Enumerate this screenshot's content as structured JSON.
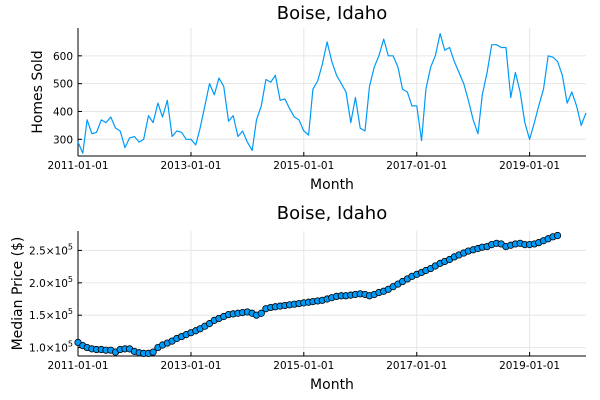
{
  "chart_data": [
    {
      "type": "line",
      "title": "Boise, Idaho",
      "xlabel": "Month",
      "ylabel": "Homes Sold",
      "xlim": [
        "2011-01-01",
        "2020-01-01"
      ],
      "ylim": [
        240,
        700
      ],
      "xticks": [
        "2011-01-01",
        "2013-01-01",
        "2015-01-01",
        "2017-01-01",
        "2019-01-01"
      ],
      "yticks": [
        300,
        400,
        500,
        600
      ],
      "color": "#009af9",
      "grid": true,
      "legend": "none",
      "series": [
        {
          "start": "2011-01",
          "values": [
            290,
            250,
            370,
            320,
            325,
            370,
            360,
            380,
            340,
            330,
            270,
            305,
            310,
            290,
            300,
            385,
            360,
            430,
            380,
            440,
            310,
            330,
            325,
            300,
            300,
            280,
            340,
            420,
            500,
            460,
            520,
            490,
            365,
            385,
            310,
            330,
            290,
            260,
            370,
            420,
            515,
            505,
            530,
            440,
            445,
            410,
            380,
            370,
            330,
            315,
            480,
            510,
            570,
            650,
            580,
            530,
            500,
            470,
            360,
            450,
            340,
            330,
            490,
            560,
            600,
            660,
            600,
            600,
            560,
            480,
            470,
            420,
            420,
            295,
            480,
            560,
            600,
            680,
            620,
            630,
            580,
            540,
            500,
            440,
            370,
            320,
            460,
            540,
            640,
            640,
            630,
            630,
            450,
            540,
            470,
            360,
            300,
            360,
            420,
            480,
            600,
            595,
            580,
            530,
            430,
            470,
            420,
            350,
            395
          ]
        }
      ]
    },
    {
      "type": "scatter",
      "title": "Boise, Idaho",
      "xlabel": "Month",
      "ylabel": "Median Price ($)",
      "xlim": [
        "2011-01-01",
        "2020-01-01"
      ],
      "ylim": [
        87000,
        280000
      ],
      "xticks": [
        "2011-01-01",
        "2013-01-01",
        "2015-01-01",
        "2017-01-01",
        "2019-01-01"
      ],
      "yticks": [
        {
          "value": 100000,
          "mantissa": "1.0",
          "exponent": "5"
        },
        {
          "value": 150000,
          "mantissa": "1.5",
          "exponent": "5"
        },
        {
          "value": 200000,
          "mantissa": "2.0",
          "exponent": "5"
        },
        {
          "value": 250000,
          "mantissa": "2.5",
          "exponent": "5"
        }
      ],
      "tick_prefix": "×10",
      "color": "#009af9",
      "grid": true,
      "legend": "none",
      "series": [
        {
          "start": "2011-01",
          "values": [
            108000,
            103000,
            100000,
            98000,
            97000,
            97000,
            96000,
            96000,
            93000,
            97000,
            98000,
            98000,
            94000,
            92000,
            91000,
            91000,
            93000,
            100000,
            104000,
            107000,
            110000,
            114000,
            117000,
            120000,
            123000,
            126000,
            129000,
            133000,
            137000,
            142000,
            145000,
            148000,
            151000,
            152000,
            153000,
            154000,
            155000,
            153000,
            150000,
            153000,
            160000,
            162000,
            163000,
            164000,
            165000,
            166000,
            167000,
            168000,
            169000,
            170000,
            171000,
            172000,
            173000,
            175000,
            177000,
            179000,
            180000,
            180000,
            181000,
            182000,
            183000,
            182000,
            180000,
            182000,
            185000,
            187000,
            190000,
            194000,
            198000,
            202000,
            206000,
            210000,
            213000,
            216000,
            219000,
            222000,
            226000,
            230000,
            233000,
            236000,
            240000,
            243000,
            246000,
            249000,
            251000,
            253000,
            255000,
            256000,
            259000,
            261000,
            260000,
            256000,
            258000,
            260000,
            261000,
            259000,
            259000,
            260000,
            262000,
            265000,
            268000,
            271000,
            273000
          ]
        }
      ]
    }
  ]
}
